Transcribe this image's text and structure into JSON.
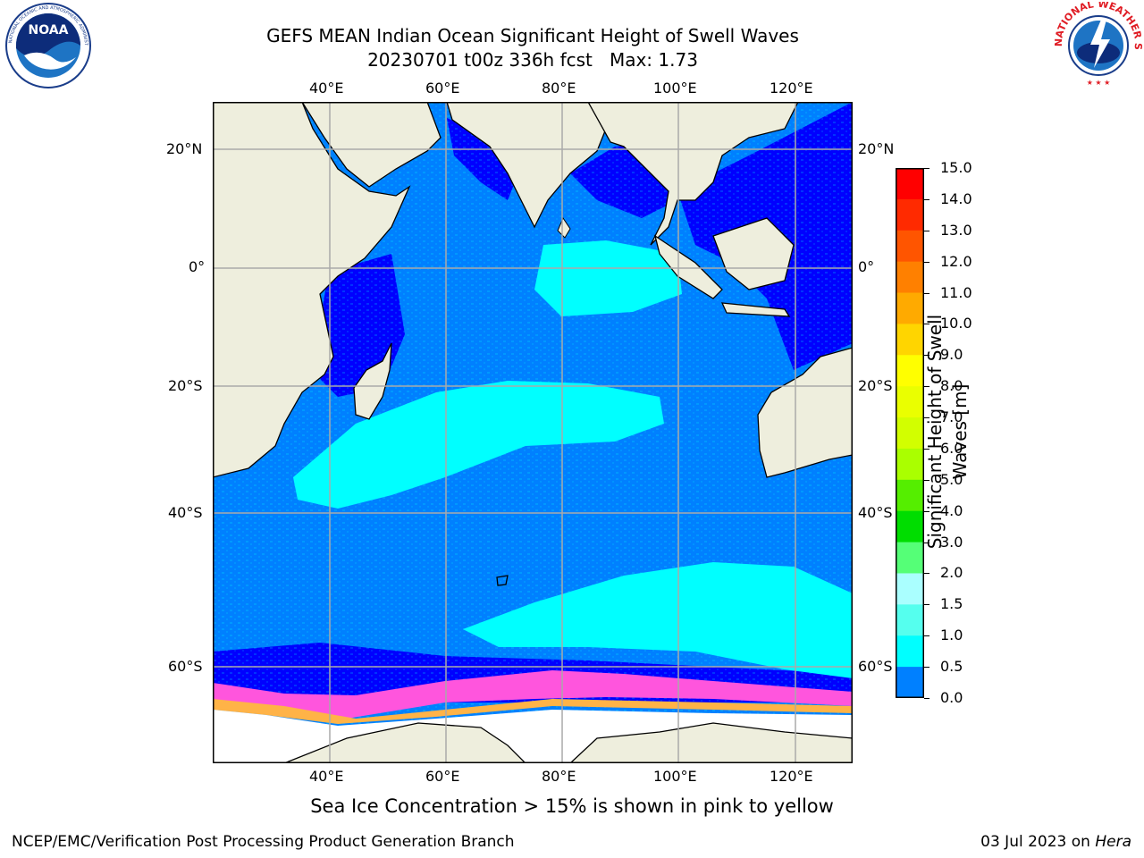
{
  "title": {
    "line1": "GEFS MEAN Indian Ocean Significant Height of Swell Waves",
    "line2": "20230701 t00z 336h fcst   Max: 1.73"
  },
  "logos": {
    "left": {
      "name": "noaa-logo",
      "text": "NOAA",
      "ring_text": "NATIONAL OCEANIC AND ATMOSPHERIC ADMINISTRATION · U.S. DEPARTMENT OF COMMERCE"
    },
    "right": {
      "name": "nws-logo",
      "ring_text": "NATIONAL WEATHER SERVICE"
    }
  },
  "map": {
    "lon_ticks": [
      "40°E",
      "60°E",
      "80°E",
      "100°E",
      "120°E"
    ],
    "lat_ticks": [
      "20°N",
      "0°",
      "20°S",
      "40°S",
      "60°S"
    ],
    "land_color": "#eeeedd",
    "ice_color": "#ffffff"
  },
  "colorbar": {
    "label": "Significant Height of Swell Waves [m]",
    "ticks": [
      "15.0",
      "14.0",
      "13.0",
      "12.0",
      "11.0",
      "10.0",
      "9.0",
      "8.0",
      "7.0",
      "6.0",
      "5.0",
      "4.0",
      "3.0",
      "2.0",
      "1.5",
      "1.0",
      "0.5",
      "0.0"
    ],
    "colors": [
      "#ff0000",
      "#ff2a00",
      "#ff5500",
      "#ff8000",
      "#ffaa00",
      "#ffd500",
      "#ffff00",
      "#eaff00",
      "#d2ff00",
      "#aaff00",
      "#55ee00",
      "#00dd00",
      "#55ff77",
      "#aaffff",
      "#55ffee",
      "#00ffff",
      "#0080ff",
      "#0000ff"
    ]
  },
  "caption": "Sea Ice Concentration > 15% is shown in pink to yellow",
  "footer": {
    "left": "NCEP/EMC/Verification Post Processing Product Generation Branch",
    "right_prefix": "03 Jul 2023 on ",
    "right_host": "Hera"
  }
}
